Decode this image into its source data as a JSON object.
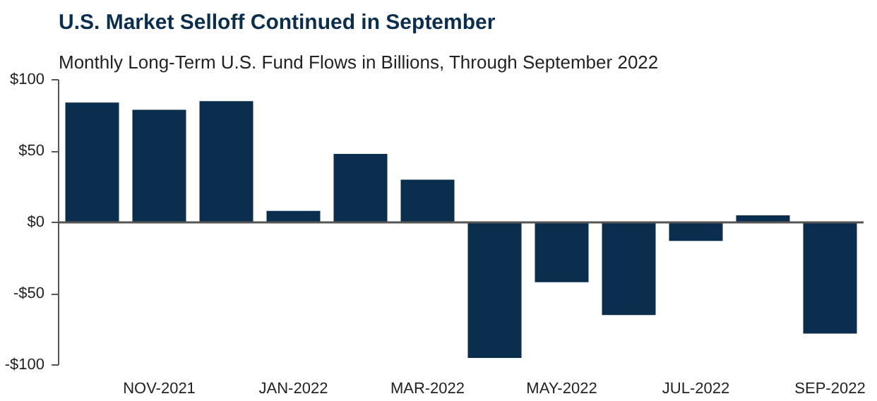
{
  "chart_data": {
    "type": "bar",
    "title": "U.S. Market Selloff Continued in September",
    "subtitle": "Monthly Long-Term U.S. Fund Flows in Billions, Through September 2022",
    "categories": [
      null,
      "NOV-2021",
      null,
      "JAN-2022",
      null,
      "MAR-2022",
      null,
      "MAY-2022",
      null,
      "JUL-2022",
      null,
      "SEP-2022"
    ],
    "series": [
      {
        "color": "#0b2e4f",
        "values": [
          84,
          79,
          85,
          8,
          48,
          30,
          -95,
          -42,
          -65,
          -13,
          5,
          -78
        ]
      }
    ],
    "ylim": [
      -100,
      100
    ],
    "yticks": [
      {
        "value": -100,
        "label": "-$100"
      },
      {
        "value": -50,
        "label": "-$50"
      },
      {
        "value": 0,
        "label": "$0"
      },
      {
        "value": 50,
        "label": "$50"
      },
      {
        "value": 100,
        "label": "$100"
      }
    ],
    "ref_lines": [
      {
        "axis": "y",
        "value": 0,
        "color": "#555555"
      }
    ],
    "grid": false
  }
}
